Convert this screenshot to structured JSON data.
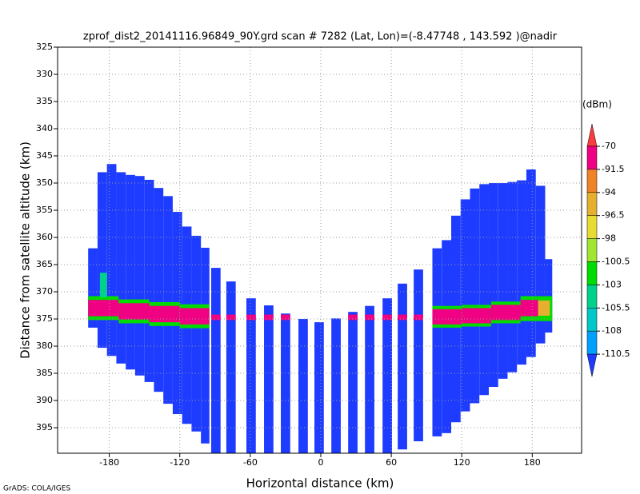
{
  "chart_data": {
    "type": "heatmap",
    "title": "zprof_dist2_20141116.96849_90Y.grd  scan # 7282  (Lat, Lon)=(-8.47748 , 143.592 )@nadir",
    "xlabel": "Horizontal distance (km)",
    "ylabel": "Distance from satellite altitude (km)",
    "footnote": "GrADS: COLA/IGES",
    "xlim": [
      -224,
      222
    ],
    "ylim": [
      325,
      399.7
    ],
    "xticks": [
      -180,
      -120,
      -60,
      0,
      60,
      120,
      180
    ],
    "yticks": [
      325,
      330,
      335,
      340,
      345,
      350,
      355,
      360,
      365,
      370,
      375,
      380,
      385,
      390,
      395
    ],
    "grid": true,
    "colorbar": {
      "label": "(dBm)",
      "levels": [
        -70,
        -91.5,
        -94,
        -96.5,
        -98,
        -100.5,
        -103,
        -105.5,
        -108,
        -110.5
      ],
      "colors": [
        "#fa3c3c",
        "#f00082",
        "#f08228",
        "#e6af2d",
        "#e6dc32",
        "#a0e632",
        "#00dc00",
        "#00d28c",
        "#00c8c8",
        "#00a0ff",
        "#1e3cff"
      ]
    },
    "cells": [
      [
        -198,
        -190,
        362,
        376.6,
        -112
      ],
      [
        -190,
        -182,
        348,
        380.3,
        -112
      ],
      [
        -182,
        -174,
        346.5,
        381.8,
        -112
      ],
      [
        -174,
        -166,
        348,
        383.2,
        -112
      ],
      [
        -166,
        -158,
        348.5,
        384.3,
        -112
      ],
      [
        -158,
        -150,
        348.7,
        385.4,
        -112
      ],
      [
        -150,
        -142,
        349.4,
        386.6,
        -112
      ],
      [
        -142,
        -134,
        350.9,
        388.4,
        -112
      ],
      [
        -134,
        -126,
        352.4,
        390.6,
        -112
      ],
      [
        -126,
        -118,
        355.3,
        392.5,
        -112
      ],
      [
        -118,
        -110,
        358,
        394.3,
        -112
      ],
      [
        -110,
        -102,
        359.7,
        395.7,
        -112
      ],
      [
        -102,
        -94.8,
        361.9,
        397.9,
        -112
      ],
      [
        95,
        103,
        362,
        396.6,
        -112
      ],
      [
        103,
        111,
        360.5,
        396,
        -112
      ],
      [
        111,
        119,
        356,
        394,
        -112
      ],
      [
        119,
        127,
        353,
        392,
        -112
      ],
      [
        127,
        135,
        351,
        390.5,
        -112
      ],
      [
        135,
        143,
        350.2,
        389,
        -112
      ],
      [
        143,
        151,
        350,
        387.5,
        -112
      ],
      [
        151,
        159,
        350,
        386,
        -112
      ],
      [
        159,
        167,
        349.8,
        384.8,
        -112
      ],
      [
        167,
        175,
        349.5,
        383.4,
        -112
      ],
      [
        175,
        183,
        347.5,
        382,
        -112
      ],
      [
        183,
        191,
        350.5,
        379.5,
        -112
      ],
      [
        191,
        197,
        364,
        377.5,
        -112
      ],
      [
        -93.3,
        -85.3,
        365.6,
        399.7,
        -112
      ],
      [
        -80.4,
        -72.4,
        368.1,
        399.7,
        -112
      ],
      [
        -63.3,
        -55.3,
        371.2,
        399.7,
        -112
      ],
      [
        -48.3,
        -40.3,
        372.5,
        399.7,
        -112
      ],
      [
        -34,
        -26,
        374,
        399.7,
        -112
      ],
      [
        -19,
        -11,
        375,
        399.7,
        -112
      ],
      [
        -5.4,
        2.6,
        375.6,
        399.7,
        -112
      ],
      [
        9,
        17,
        374.9,
        399.7,
        -112
      ],
      [
        23.3,
        31.3,
        373.7,
        399.7,
        -112
      ],
      [
        37.6,
        45.6,
        372.6,
        399.7,
        -112
      ],
      [
        52.6,
        60.6,
        371.2,
        399.7,
        -112
      ],
      [
        65.5,
        73.5,
        368.5,
        399,
        -112
      ],
      [
        79.1,
        87.1,
        365.9,
        397.5,
        -112
      ],
      [
        -198,
        -172,
        370.8,
        375.2,
        -102
      ],
      [
        -198,
        -172,
        371.5,
        374.5,
        -85
      ],
      [
        -172,
        -146,
        371.4,
        375.8,
        -102
      ],
      [
        -172,
        -146,
        372.1,
        375.1,
        -85
      ],
      [
        -146,
        -120,
        371.9,
        376.3,
        -102
      ],
      [
        -146,
        -120,
        372.6,
        375.6,
        -85
      ],
      [
        -120,
        -94.8,
        372.3,
        376.7,
        -102
      ],
      [
        -120,
        -94.8,
        373,
        376,
        -85
      ],
      [
        -188,
        -182,
        366.5,
        371,
        -104
      ],
      [
        95,
        120,
        372.6,
        376.6,
        -102
      ],
      [
        95,
        120,
        373.2,
        376,
        -85
      ],
      [
        120,
        145,
        372.4,
        376.4,
        -102
      ],
      [
        120,
        145,
        373,
        375.8,
        -85
      ],
      [
        145,
        170,
        371.8,
        375.8,
        -102
      ],
      [
        145,
        170,
        372.4,
        375.2,
        -85
      ],
      [
        170,
        197,
        370.8,
        375.4,
        -102
      ],
      [
        170,
        185,
        371.5,
        374.5,
        -90
      ],
      [
        185,
        195,
        371.6,
        374.4,
        -95
      ],
      [
        -93.3,
        -85.3,
        374.2,
        375.2,
        -85
      ],
      [
        -80.4,
        -72.4,
        374.2,
        375.2,
        -85
      ],
      [
        -63.3,
        -55.3,
        374.2,
        375.2,
        -85
      ],
      [
        -48.3,
        -40.3,
        374.2,
        375.2,
        -85
      ],
      [
        -34,
        -26,
        374.2,
        375.2,
        -85
      ],
      [
        23.3,
        31.3,
        374.2,
        375.2,
        -85
      ],
      [
        37.6,
        45.6,
        374.2,
        375.2,
        -85
      ],
      [
        52.6,
        60.6,
        374.2,
        375.2,
        -85
      ],
      [
        65.5,
        73.5,
        374.2,
        375.2,
        -85
      ],
      [
        79.1,
        87.1,
        374.2,
        375.2,
        -85
      ]
    ]
  }
}
